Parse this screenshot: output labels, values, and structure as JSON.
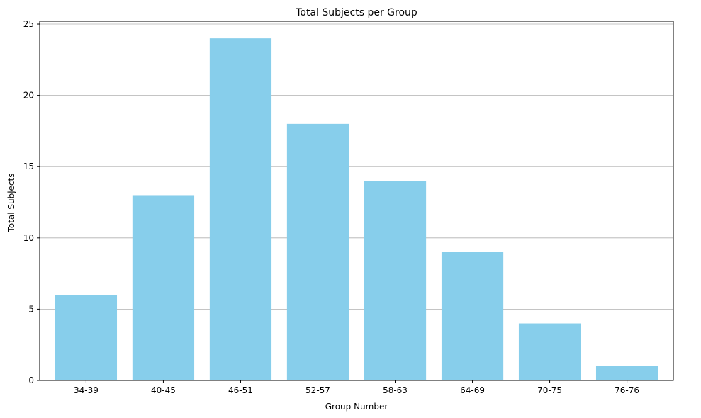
{
  "chart_data": {
    "type": "bar",
    "title": "Total Subjects per Group",
    "xlabel": "Group Number",
    "ylabel": "Total Subjects",
    "categories": [
      "34-39",
      "40-45",
      "46-51",
      "52-57",
      "58-63",
      "64-69",
      "70-75",
      "76-76"
    ],
    "values": [
      6,
      13,
      24,
      18,
      14,
      9,
      4,
      1
    ],
    "ylim": [
      0,
      25.2
    ],
    "yticks": [
      0,
      5,
      10,
      15,
      20,
      25
    ],
    "grid": "y-major",
    "bar_color": "#87CEEB",
    "grid_color": "#b0b0b0"
  }
}
